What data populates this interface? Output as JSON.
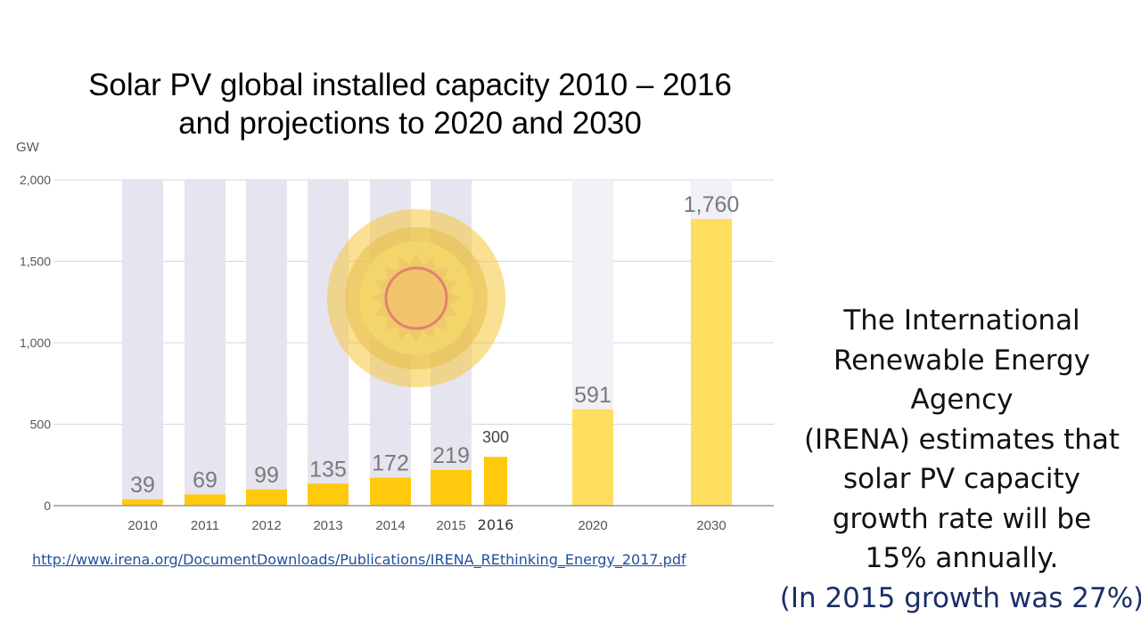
{
  "title": {
    "line1": "Solar PV global installed capacity 2010 – 2016",
    "line2": "and projections to 2020 and 2030"
  },
  "source_url": "http://www.irena.org/DocumentDownloads/Publications/IRENA_REthinking_Energy_2017.pdf",
  "note": {
    "lines": [
      "The International",
      "Renewable Energy Agency",
      "(IRENA) estimates that",
      "solar PV capacity",
      "growth rate will be",
      "15% annually."
    ],
    "highlight": "(In 2015 growth was 27%)"
  },
  "colors": {
    "bar": "#ffc90d",
    "bar_projection": "#ffdd5e",
    "background_column": "#e5e4ef",
    "background_column_projection": "#f1f0f6",
    "grid": "#d5d5dd",
    "axis": "#9a9a9a",
    "sun": "#f5c63b",
    "note_highlight": "#1b2e66"
  },
  "chart_data": {
    "type": "bar",
    "ylabel": "GW",
    "ylim": [
      0,
      2000
    ],
    "yticks": [
      "0",
      "500",
      "1,000",
      "1,500",
      "2,000"
    ],
    "categories": [
      "2010",
      "2011",
      "2012",
      "2013",
      "2014",
      "2015",
      "2016",
      "2020",
      "2030"
    ],
    "values": [
      39,
      69,
      99,
      135,
      172,
      219,
      300,
      591,
      1760
    ],
    "labels": [
      "39",
      "69",
      "99",
      "135",
      "172",
      "219",
      "300",
      "591",
      "1,760"
    ],
    "projection": [
      false,
      false,
      false,
      false,
      false,
      false,
      false,
      true,
      true
    ],
    "grid": true,
    "decoration": "sun-icon"
  }
}
